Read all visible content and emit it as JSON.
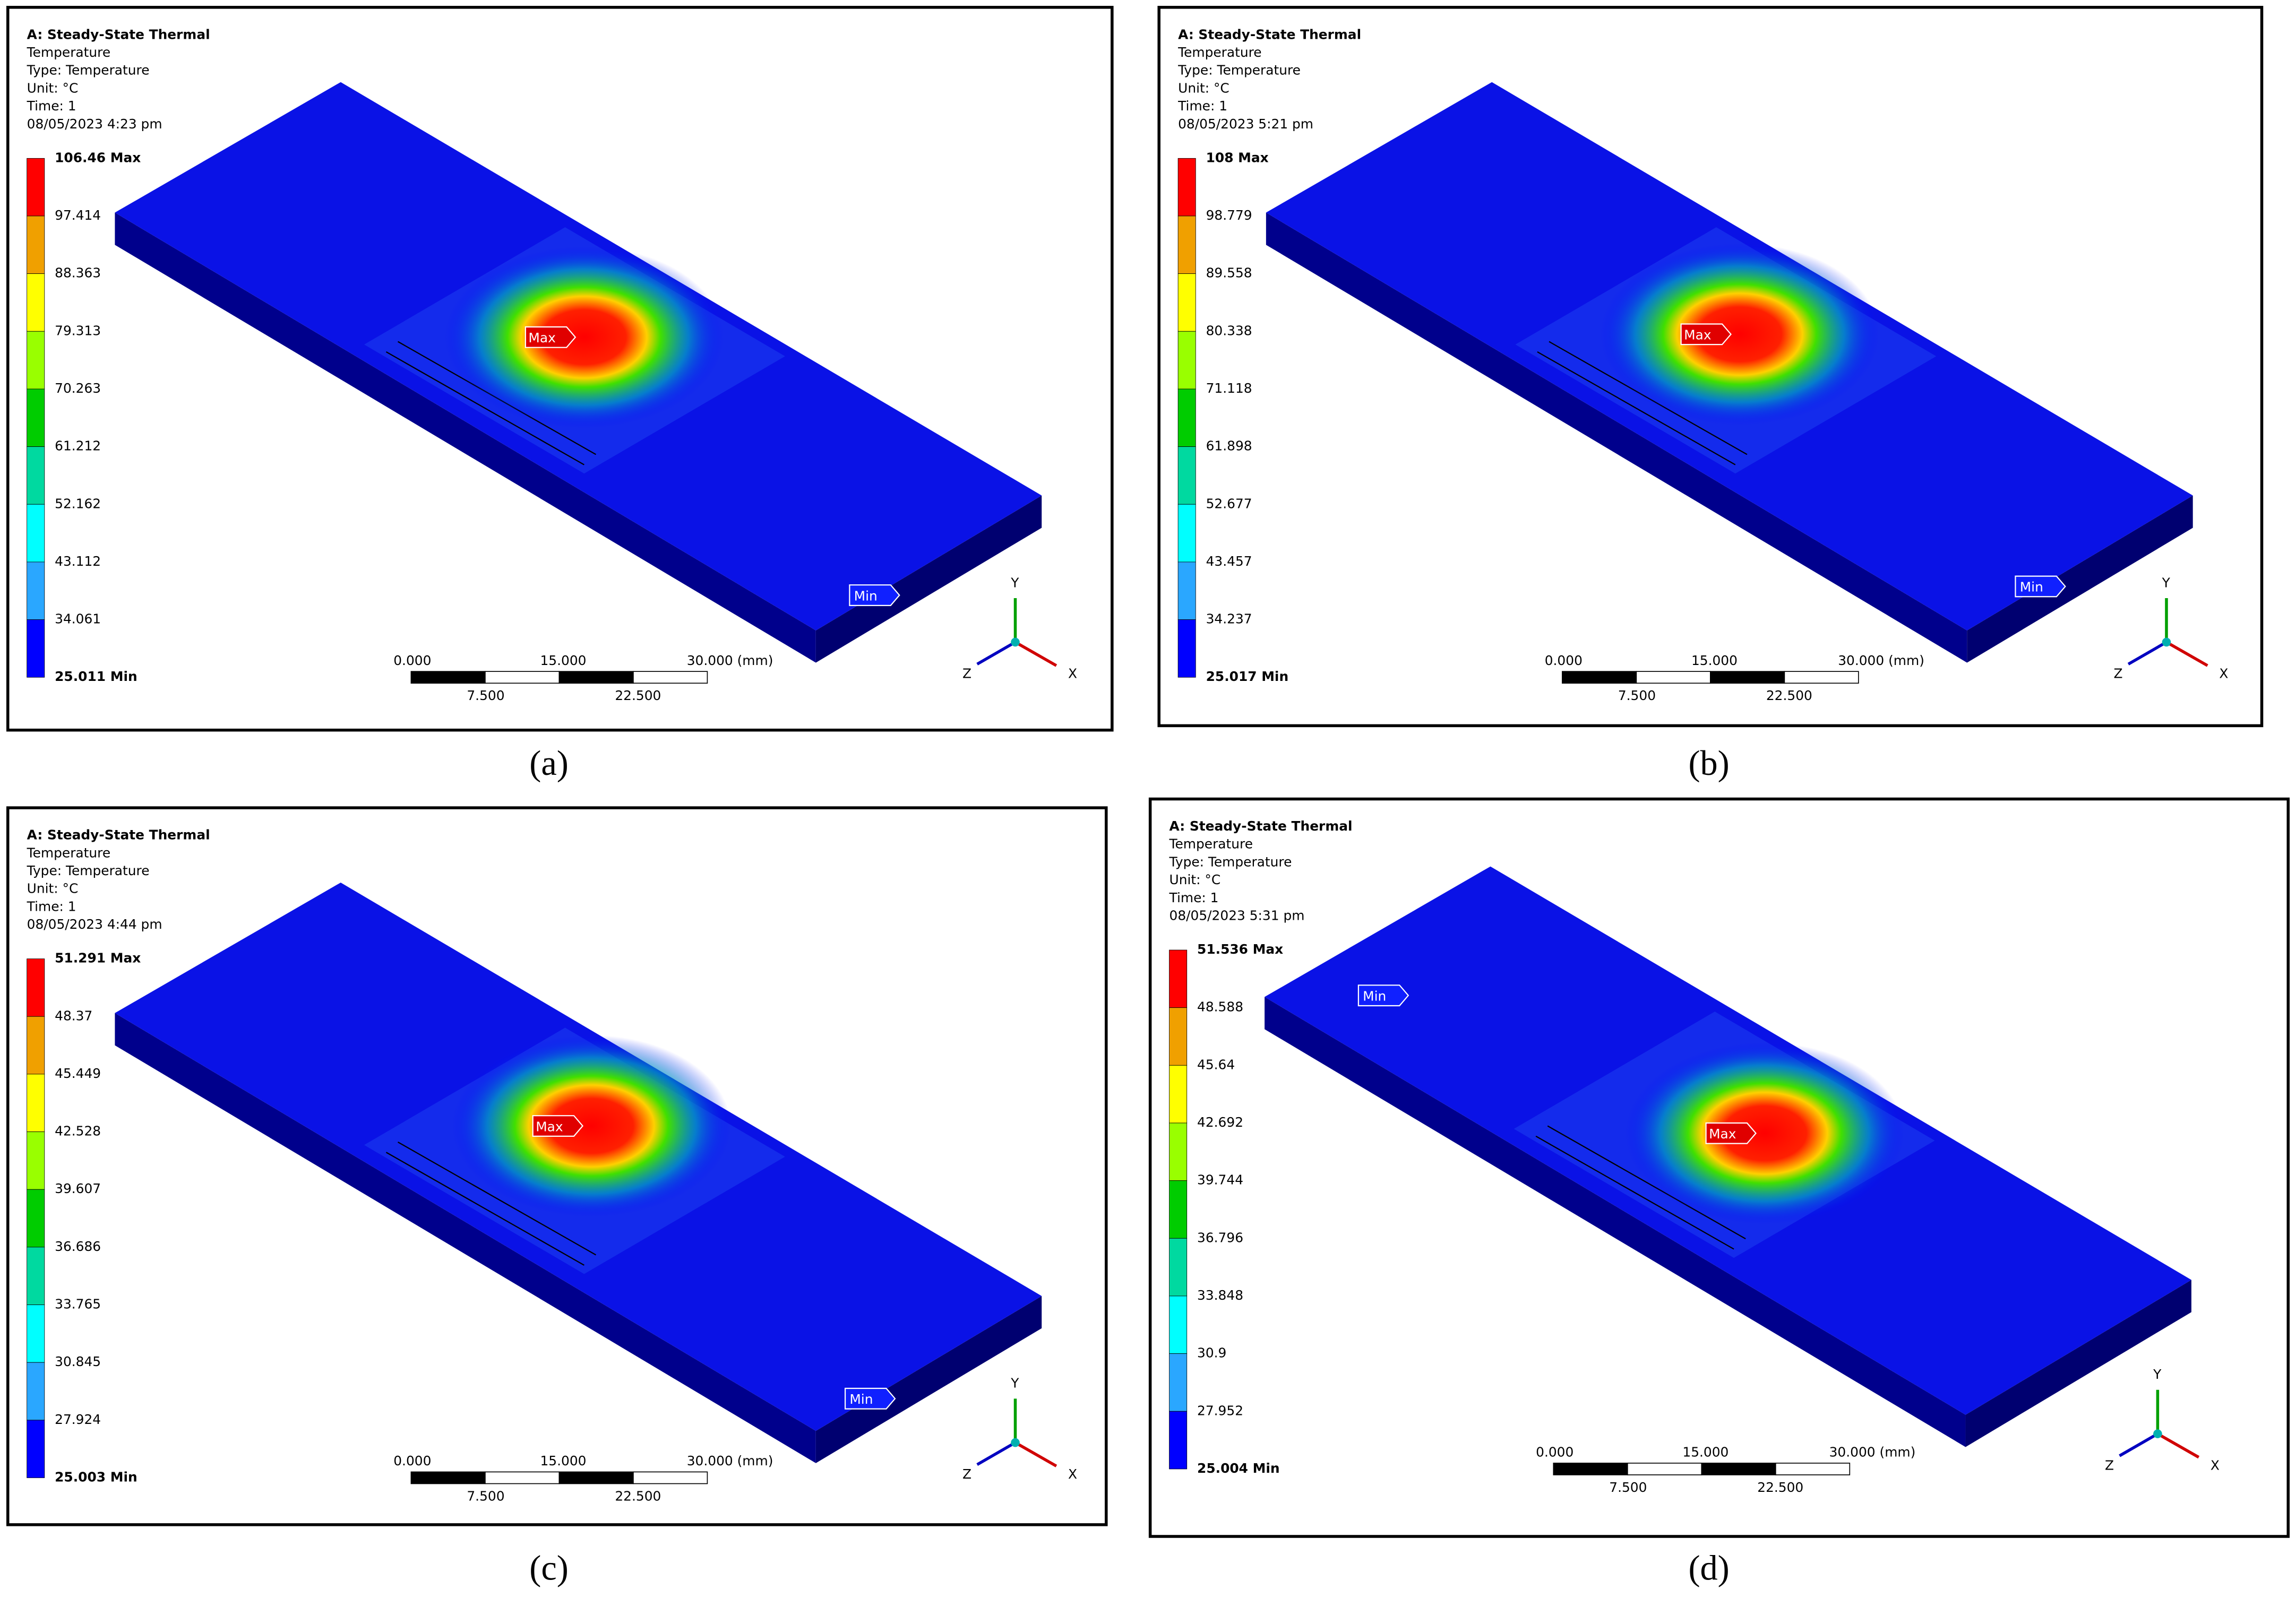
{
  "legend_colors": [
    "#ff0000",
    "#f0a000",
    "#ffff00",
    "#99ff00",
    "#00cc00",
    "#00d9a0",
    "#00ffff",
    "#2aa7ff",
    "#0000ff"
  ],
  "panels": [
    {
      "caption": "(a)",
      "header": [
        "A: Steady-State Thermal",
        "Temperature",
        "Type: Temperature",
        "Unit: °C",
        "Time: 1",
        "08/05/2023 4:23 pm"
      ],
      "legend": [
        "106.46 Max",
        "97.414",
        "88.363",
        "79.313",
        "70.263",
        "61.212",
        "52.162",
        "43.112",
        "34.061",
        "25.011 Min"
      ],
      "markers": [
        "Max",
        "Min"
      ],
      "scale_top": [
        "0.000",
        "15.000",
        "30.000 (mm)"
      ],
      "scale_bottom": [
        "7.500",
        "22.500"
      ],
      "axes": [
        "Y",
        "Z",
        "X"
      ]
    },
    {
      "caption": "(b)",
      "header": [
        "A: Steady-State Thermal",
        "Temperature",
        "Type: Temperature",
        "Unit: °C",
        "Time: 1",
        "08/05/2023 5:21 pm"
      ],
      "legend": [
        "108 Max",
        "98.779",
        "89.558",
        "80.338",
        "71.118",
        "61.898",
        "52.677",
        "43.457",
        "34.237",
        "25.017 Min"
      ],
      "markers": [
        "Max",
        "Min"
      ],
      "scale_top": [
        "0.000",
        "15.000",
        "30.000 (mm)"
      ],
      "scale_bottom": [
        "7.500",
        "22.500"
      ],
      "axes": [
        "Y",
        "Z",
        "X"
      ]
    },
    {
      "caption": "(c)",
      "header": [
        "A: Steady-State Thermal",
        "Temperature",
        "Type: Temperature",
        "Unit: °C",
        "Time: 1",
        "08/05/2023 4:44 pm"
      ],
      "legend": [
        "51.291 Max",
        "48.37",
        "45.449",
        "42.528",
        "39.607",
        "36.686",
        "33.765",
        "30.845",
        "27.924",
        "25.003 Min"
      ],
      "markers": [
        "Max",
        "Min"
      ],
      "scale_top": [
        "0.000",
        "15.000",
        "30.000 (mm)"
      ],
      "scale_bottom": [
        "7.500",
        "22.500"
      ],
      "axes": [
        "Y",
        "Z",
        "X"
      ]
    },
    {
      "caption": "(d)",
      "header": [
        "A: Steady-State Thermal",
        "Temperature",
        "Type: Temperature",
        "Unit: °C",
        "Time: 1",
        "08/05/2023 5:31 pm"
      ],
      "legend": [
        "51.536 Max",
        "48.588",
        "45.64",
        "42.692",
        "39.744",
        "36.796",
        "33.848",
        "30.9",
        "27.952",
        "25.004 Min"
      ],
      "markers": [
        "Max",
        "Min"
      ],
      "scale_top": [
        "0.000",
        "15.000",
        "30.000 (mm)"
      ],
      "scale_bottom": [
        "7.500",
        "22.500"
      ],
      "axes": [
        "Y",
        "Z",
        "X"
      ]
    }
  ]
}
